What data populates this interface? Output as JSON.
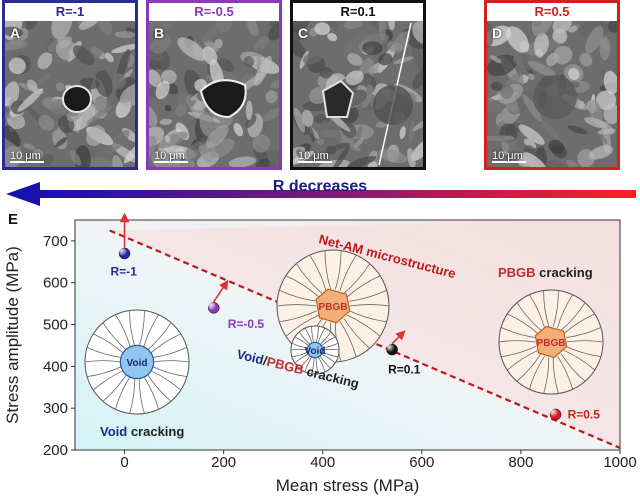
{
  "panels": [
    {
      "letter": "A",
      "label": "R=-1",
      "color": "#2a2a9a",
      "scale": "10 μm"
    },
    {
      "letter": "B",
      "label": "R=-0.5",
      "color": "#8a3ab8",
      "scale": "10 μm"
    },
    {
      "letter": "C",
      "label": "R=0.1",
      "color": "#111111",
      "scale": "10 μm"
    },
    {
      "letter": "D",
      "label": "R=0.5",
      "color": "#d02020",
      "scale": "10 μm"
    }
  ],
  "banner": {
    "label": "R decreases"
  },
  "chart_panel_letter": "E",
  "chart_data": {
    "type": "scatter",
    "xlabel": "Mean stress (MPa)",
    "ylabel": "Stress amplitude (MPa)",
    "xlim": [
      -100,
      1000
    ],
    "ylim": [
      200,
      750
    ],
    "xticks": [
      0,
      200,
      400,
      600,
      800,
      1000
    ],
    "yticks": [
      200,
      300,
      400,
      500,
      600,
      700
    ],
    "points": [
      {
        "label": "R=-1",
        "x": 0,
        "y": 670,
        "color": "#2a2a9a"
      },
      {
        "label": "R=-0.5",
        "x": 180,
        "y": 540,
        "color": "#8a3ab8"
      },
      {
        "label": "R=0.1",
        "x": 540,
        "y": 440,
        "color": "#111111"
      },
      {
        "label": "R=0.5",
        "x": 870,
        "y": 285,
        "color": "#d02020"
      }
    ],
    "boundary_line": {
      "x": [
        -30,
        1000
      ],
      "y": [
        725,
        205
      ]
    },
    "annotations": {
      "line_label": "Net-AM microstructure",
      "region_left": [
        "Void",
        "cracking"
      ],
      "region_mid": [
        "Void",
        "/",
        "PBGB",
        "cracking"
      ],
      "region_right": [
        "PBGB",
        "cracking"
      ],
      "void_text": "Void",
      "pbgb_text": "PBGB"
    },
    "colors": {
      "blue_region": "#d4f3f6",
      "red_region": "#f5dfdf",
      "line": "#c01818"
    }
  }
}
